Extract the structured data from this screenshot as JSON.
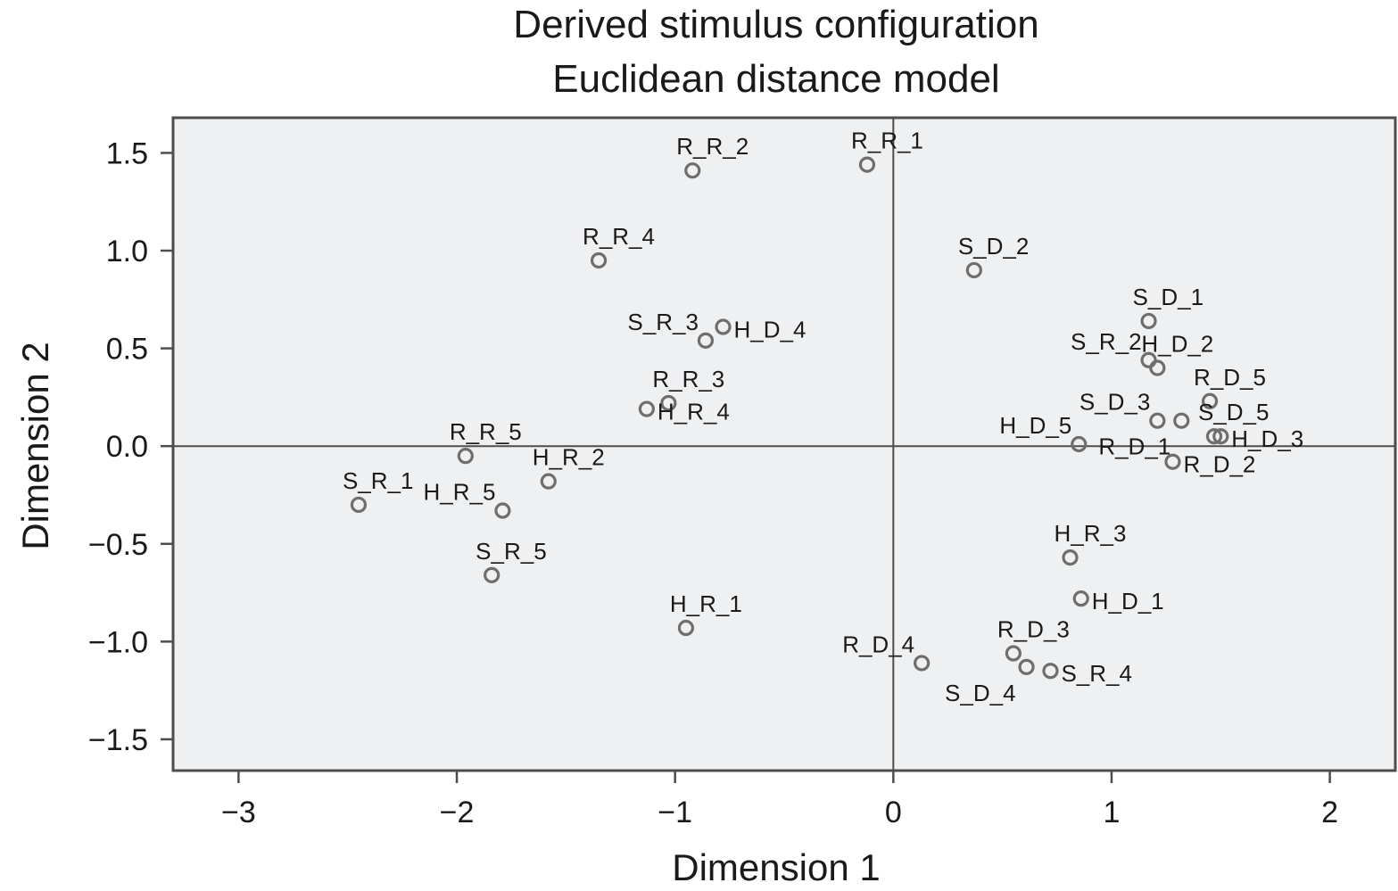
{
  "chart_data": {
    "type": "scatter",
    "title": "Derived stimulus configuration",
    "subtitle": "Euclidean distance model",
    "xlabel": "Dimension 1",
    "ylabel": "Dimension 2",
    "xlim": [
      -3.3,
      2.3
    ],
    "ylim": [
      -1.66,
      1.68
    ],
    "xticks": [
      -3,
      -2,
      -1,
      0,
      1,
      2
    ],
    "xtick_labels": [
      "−3",
      "−2",
      "−1",
      "0",
      "1",
      "2"
    ],
    "yticks": [
      1.5,
      1.0,
      0.5,
      0.0,
      -0.5,
      -1.0,
      -1.5
    ],
    "ytick_labels": [
      "1.5",
      "1.0",
      "0.5",
      "0.0",
      "−0.5",
      "−1.0",
      "−1.5"
    ],
    "grid": false,
    "reference_lines": {
      "x": 0,
      "y": 0
    },
    "marker_color": "#6e6e6e",
    "plot_background": "#eff0f1",
    "points": [
      {
        "label": "R_R_1",
        "x": -0.12,
        "y": 1.44,
        "label_pos": "above-right"
      },
      {
        "label": "R_R_2",
        "x": -0.92,
        "y": 1.41,
        "label_pos": "above-right"
      },
      {
        "label": "R_R_4",
        "x": -1.35,
        "y": 0.95,
        "label_pos": "above-right"
      },
      {
        "label": "S_R_3",
        "x": -0.86,
        "y": 0.54,
        "label_pos": "above-left"
      },
      {
        "label": "H_D_4",
        "x": -0.78,
        "y": 0.61,
        "label_pos": "below-right"
      },
      {
        "label": "R_R_3",
        "x": -1.03,
        "y": 0.22,
        "label_pos": "above-right"
      },
      {
        "label": "H_R_4",
        "x": -1.13,
        "y": 0.19,
        "label_pos": "below-right"
      },
      {
        "label": "R_R_5",
        "x": -1.96,
        "y": -0.05,
        "label_pos": "above-right"
      },
      {
        "label": "H_R_2",
        "x": -1.58,
        "y": -0.18,
        "label_pos": "above-right"
      },
      {
        "label": "S_R_1",
        "x": -2.45,
        "y": -0.3,
        "label_pos": "above-right"
      },
      {
        "label": "H_R_5",
        "x": -1.79,
        "y": -0.33,
        "label_pos": "above-left"
      },
      {
        "label": "S_R_5",
        "x": -1.84,
        "y": -0.66,
        "label_pos": "above-right"
      },
      {
        "label": "H_R_1",
        "x": -0.95,
        "y": -0.93,
        "label_pos": "above-right"
      },
      {
        "label": "S_D_2",
        "x": 0.37,
        "y": 0.9,
        "label_pos": "above-right"
      },
      {
        "label": "S_D_1",
        "x": 1.17,
        "y": 0.64,
        "label_pos": "above-right"
      },
      {
        "label": "S_R_2",
        "x": 1.17,
        "y": 0.44,
        "label_pos": "above-left"
      },
      {
        "label": "H_D_2",
        "x": 1.21,
        "y": 0.4,
        "label_pos": "above-right"
      },
      {
        "label": "R_D_5",
        "x": 1.45,
        "y": 0.23,
        "label_pos": "above-right"
      },
      {
        "label": "S_D_3",
        "x": 1.21,
        "y": 0.13,
        "label_pos": "above-left"
      },
      {
        "label": "H_D_5",
        "x": 0.85,
        "y": 0.01,
        "label_pos": "above-left"
      },
      {
        "label": "R_D_1",
        "x": 1.32,
        "y": 0.13,
        "label_pos": "below-left"
      },
      {
        "label": "S_D_5",
        "x": 1.47,
        "y": 0.05,
        "label_pos": "above-right"
      },
      {
        "label": "H_D_3",
        "x": 1.5,
        "y": 0.05,
        "label_pos": "below-right"
      },
      {
        "label": "R_D_2",
        "x": 1.28,
        "y": -0.08,
        "label_pos": "below-right"
      },
      {
        "label": "H_R_3",
        "x": 0.81,
        "y": -0.57,
        "label_pos": "above-right"
      },
      {
        "label": "H_D_1",
        "x": 0.86,
        "y": -0.78,
        "label_pos": "below-right"
      },
      {
        "label": "R_D_4",
        "x": 0.13,
        "y": -1.11,
        "label_pos": "above-left"
      },
      {
        "label": "R_D_3",
        "x": 0.55,
        "y": -1.06,
        "label_pos": "above-right"
      },
      {
        "label": "S_D_4",
        "x": 0.61,
        "y": -1.13,
        "label_pos": "below-left"
      },
      {
        "label": "S_R_4",
        "x": 0.72,
        "y": -1.15,
        "label_pos": "below-right"
      }
    ]
  }
}
